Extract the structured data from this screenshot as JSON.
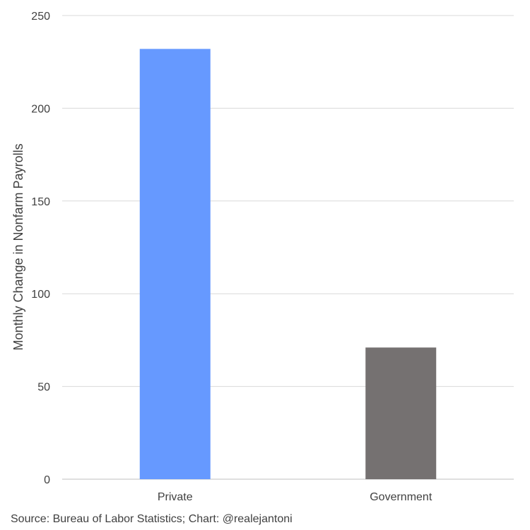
{
  "chart_data": {
    "type": "bar",
    "categories": [
      "Private",
      "Government"
    ],
    "values": [
      232,
      71
    ],
    "colors": [
      "#6699ff",
      "#757171"
    ],
    "xlabel": "",
    "ylabel": "Monthly Change in Nonfarm Payrolls",
    "ylim": [
      0,
      250
    ],
    "yticks": [
      0,
      50,
      100,
      150,
      200,
      250
    ],
    "grid": true
  },
  "source": "Source: Bureau of Labor Statistics; Chart: @realejantoni"
}
